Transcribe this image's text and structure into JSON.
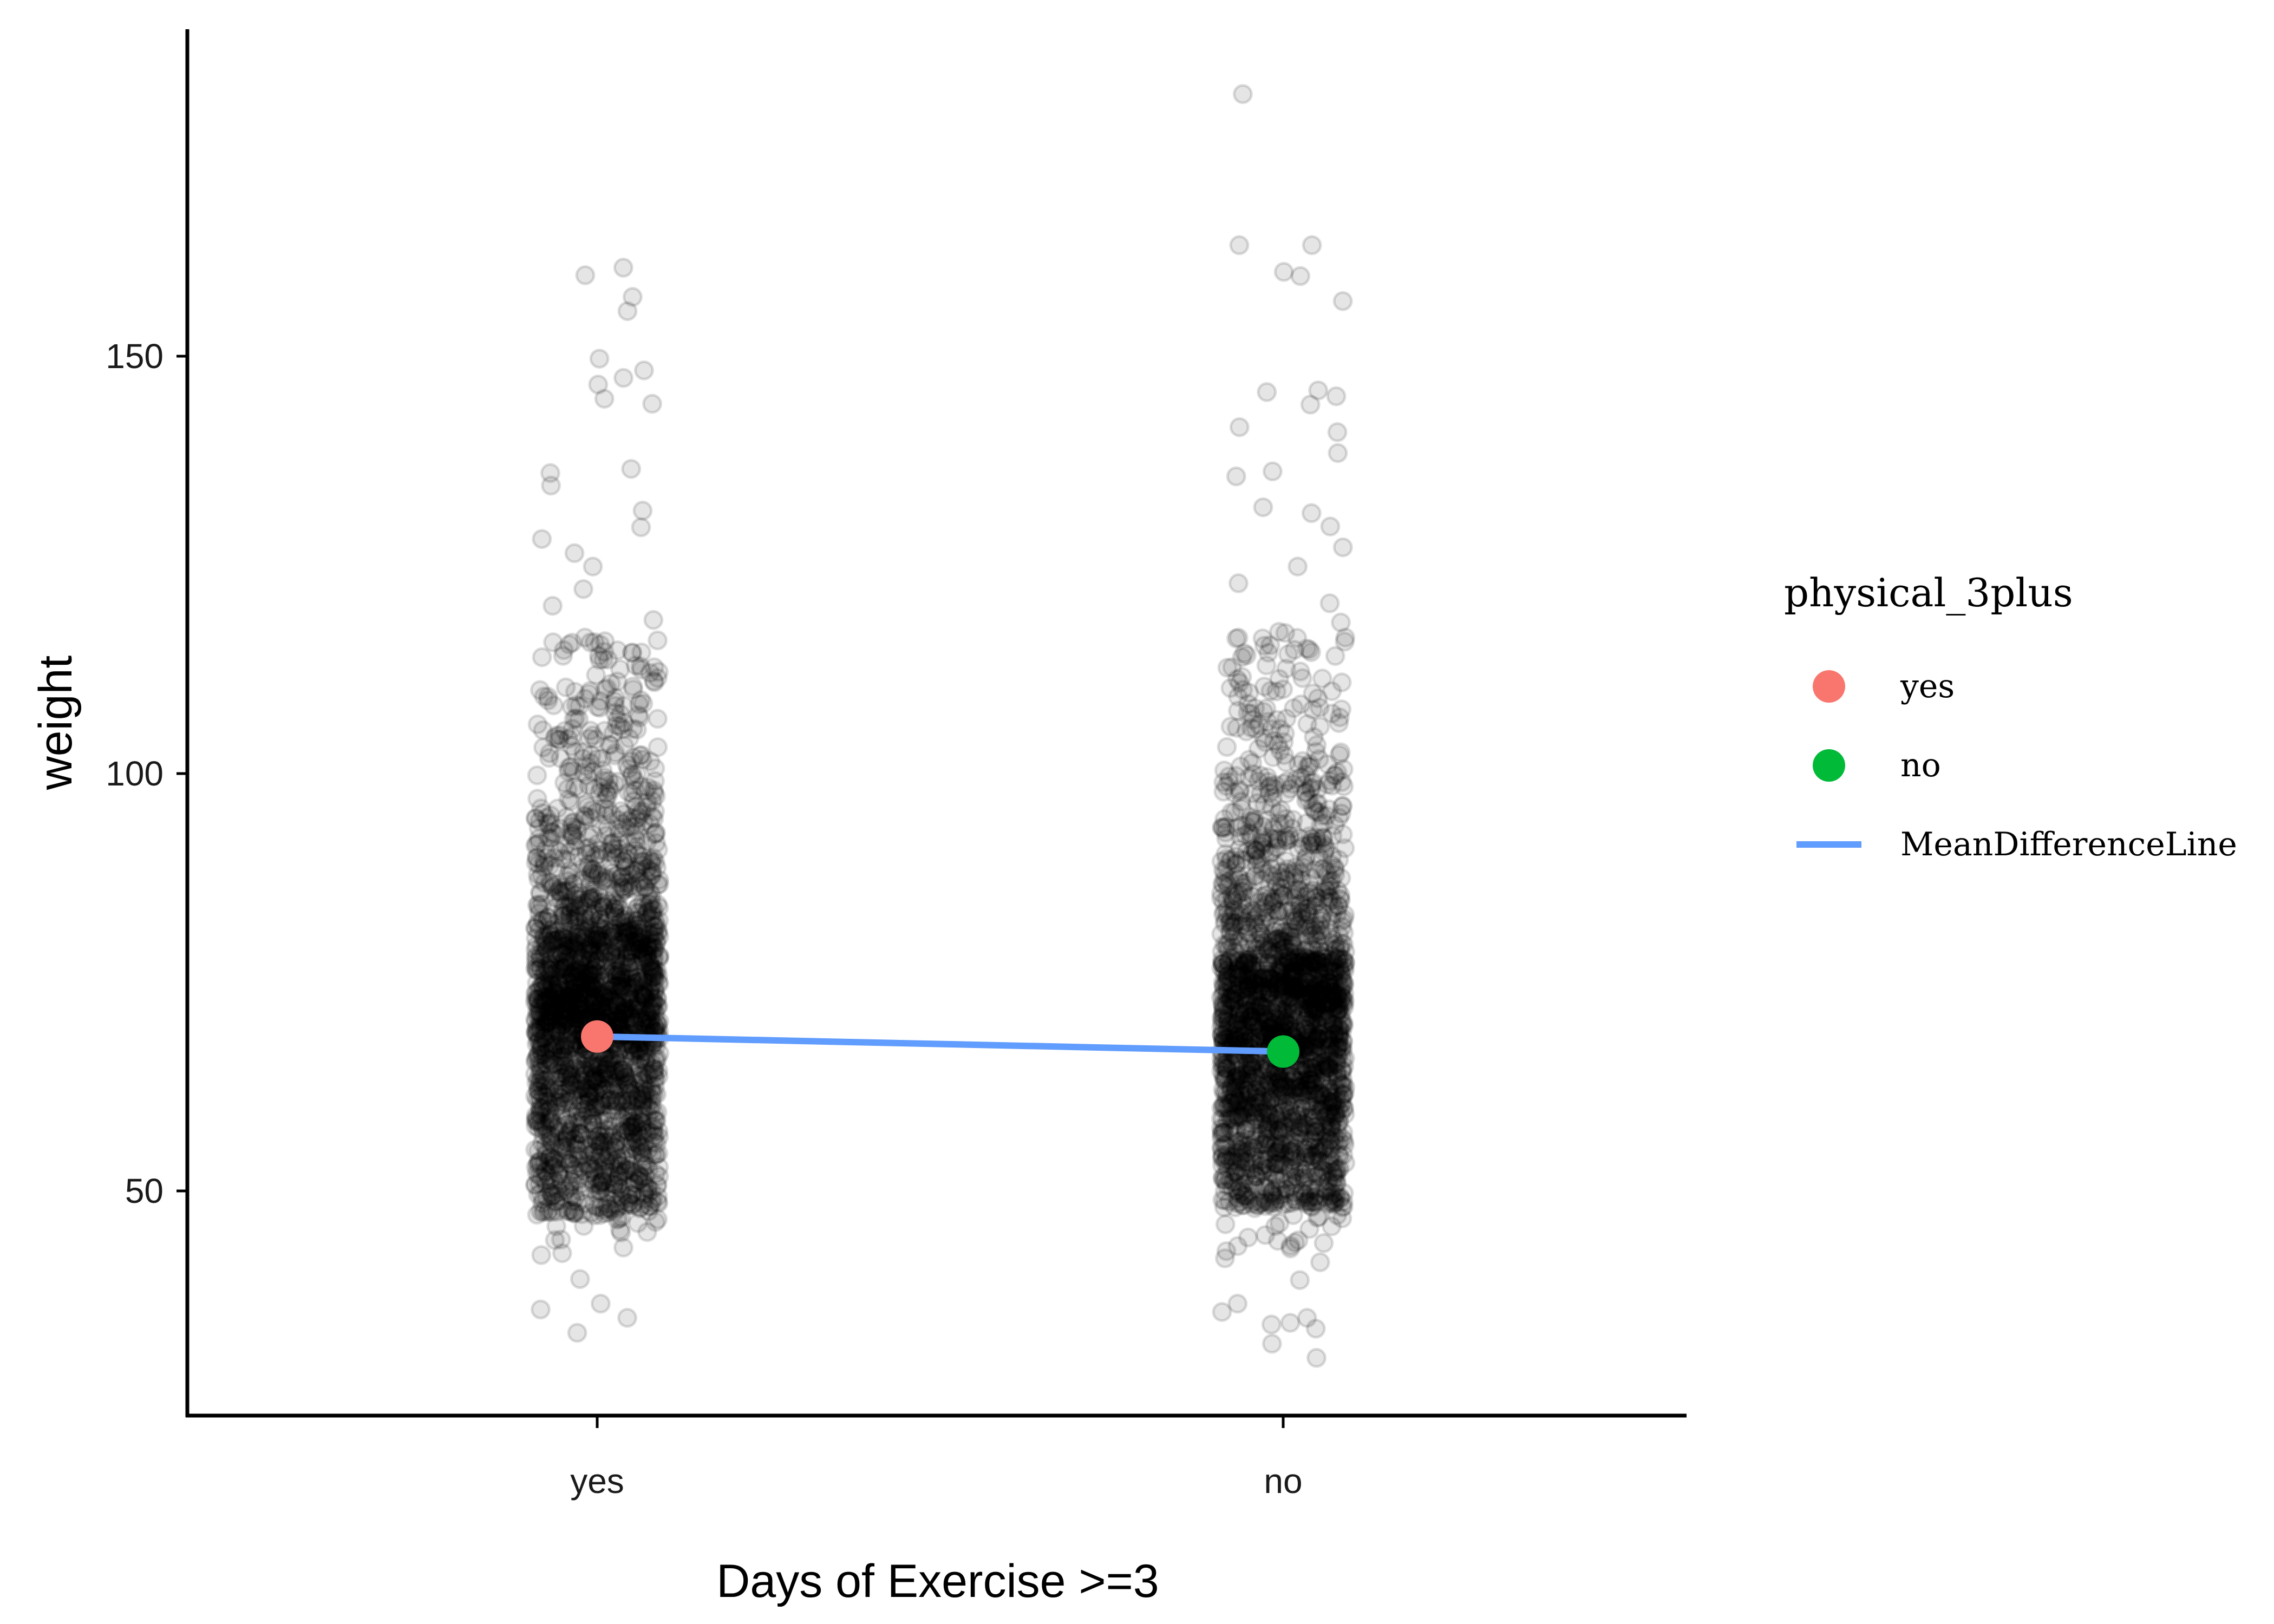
{
  "chart_data": {
    "type": "scatter",
    "title": "",
    "xlabel": "Days of Exercise >=3",
    "ylabel": "weight",
    "categories": [
      "yes",
      "no"
    ],
    "y_ticks": [
      50,
      100,
      150
    ],
    "ylim": [
      23,
      189
    ],
    "grid": false,
    "legend": {
      "title": "physical_3plus",
      "placement": "right",
      "entries": [
        {
          "label": "yes",
          "color": "#F8766D",
          "kind": "point"
        },
        {
          "label": "no",
          "color": "#00BA38",
          "kind": "point"
        },
        {
          "label": "MeanDifferenceLine",
          "color": "#619CFF",
          "kind": "line"
        }
      ]
    },
    "means": [
      {
        "category": "yes",
        "value": 68.5,
        "color": "#F8766D"
      },
      {
        "category": "no",
        "value": 66.7,
        "color": "#00BA38"
      }
    ],
    "mean_line_color": "#619CFF",
    "point_color": "#000000",
    "point_opacity": 0.1,
    "outliers": [
      {
        "category": "yes",
        "values": [
          160.6,
          159.7,
          157.1,
          155.4,
          149.7,
          148.3,
          147.4,
          146.6,
          144.9,
          144.3,
          136.5,
          136.0,
          134.5,
          131.5,
          129.5,
          128.1,
          126.4,
          124.8,
          122.1,
          120.1,
          118.4,
          116.3,
          36.5,
          35.8,
          34.8,
          33.0
        ]
      },
      {
        "category": "no",
        "values": [
          181.4,
          163.3,
          163.3,
          160.1,
          159.6,
          156.6,
          145.9,
          145.7,
          145.2,
          144.2,
          141.5,
          140.9,
          138.4,
          136.2,
          135.6,
          131.9,
          131.2,
          129.6,
          127.1,
          124.8,
          122.8,
          120.4,
          118.1,
          116.2,
          36.5,
          35.5,
          34.8,
          34.2,
          34.0,
          33.5,
          31.7,
          30.0
        ]
      }
    ],
    "distributions": [
      {
        "category": "yes",
        "dense_range": [
          39,
          116
        ],
        "solid_range": [
          47,
          82
        ]
      },
      {
        "category": "no",
        "dense_range": [
          39,
          117
        ],
        "solid_range": [
          48,
          78
        ]
      }
    ]
  }
}
